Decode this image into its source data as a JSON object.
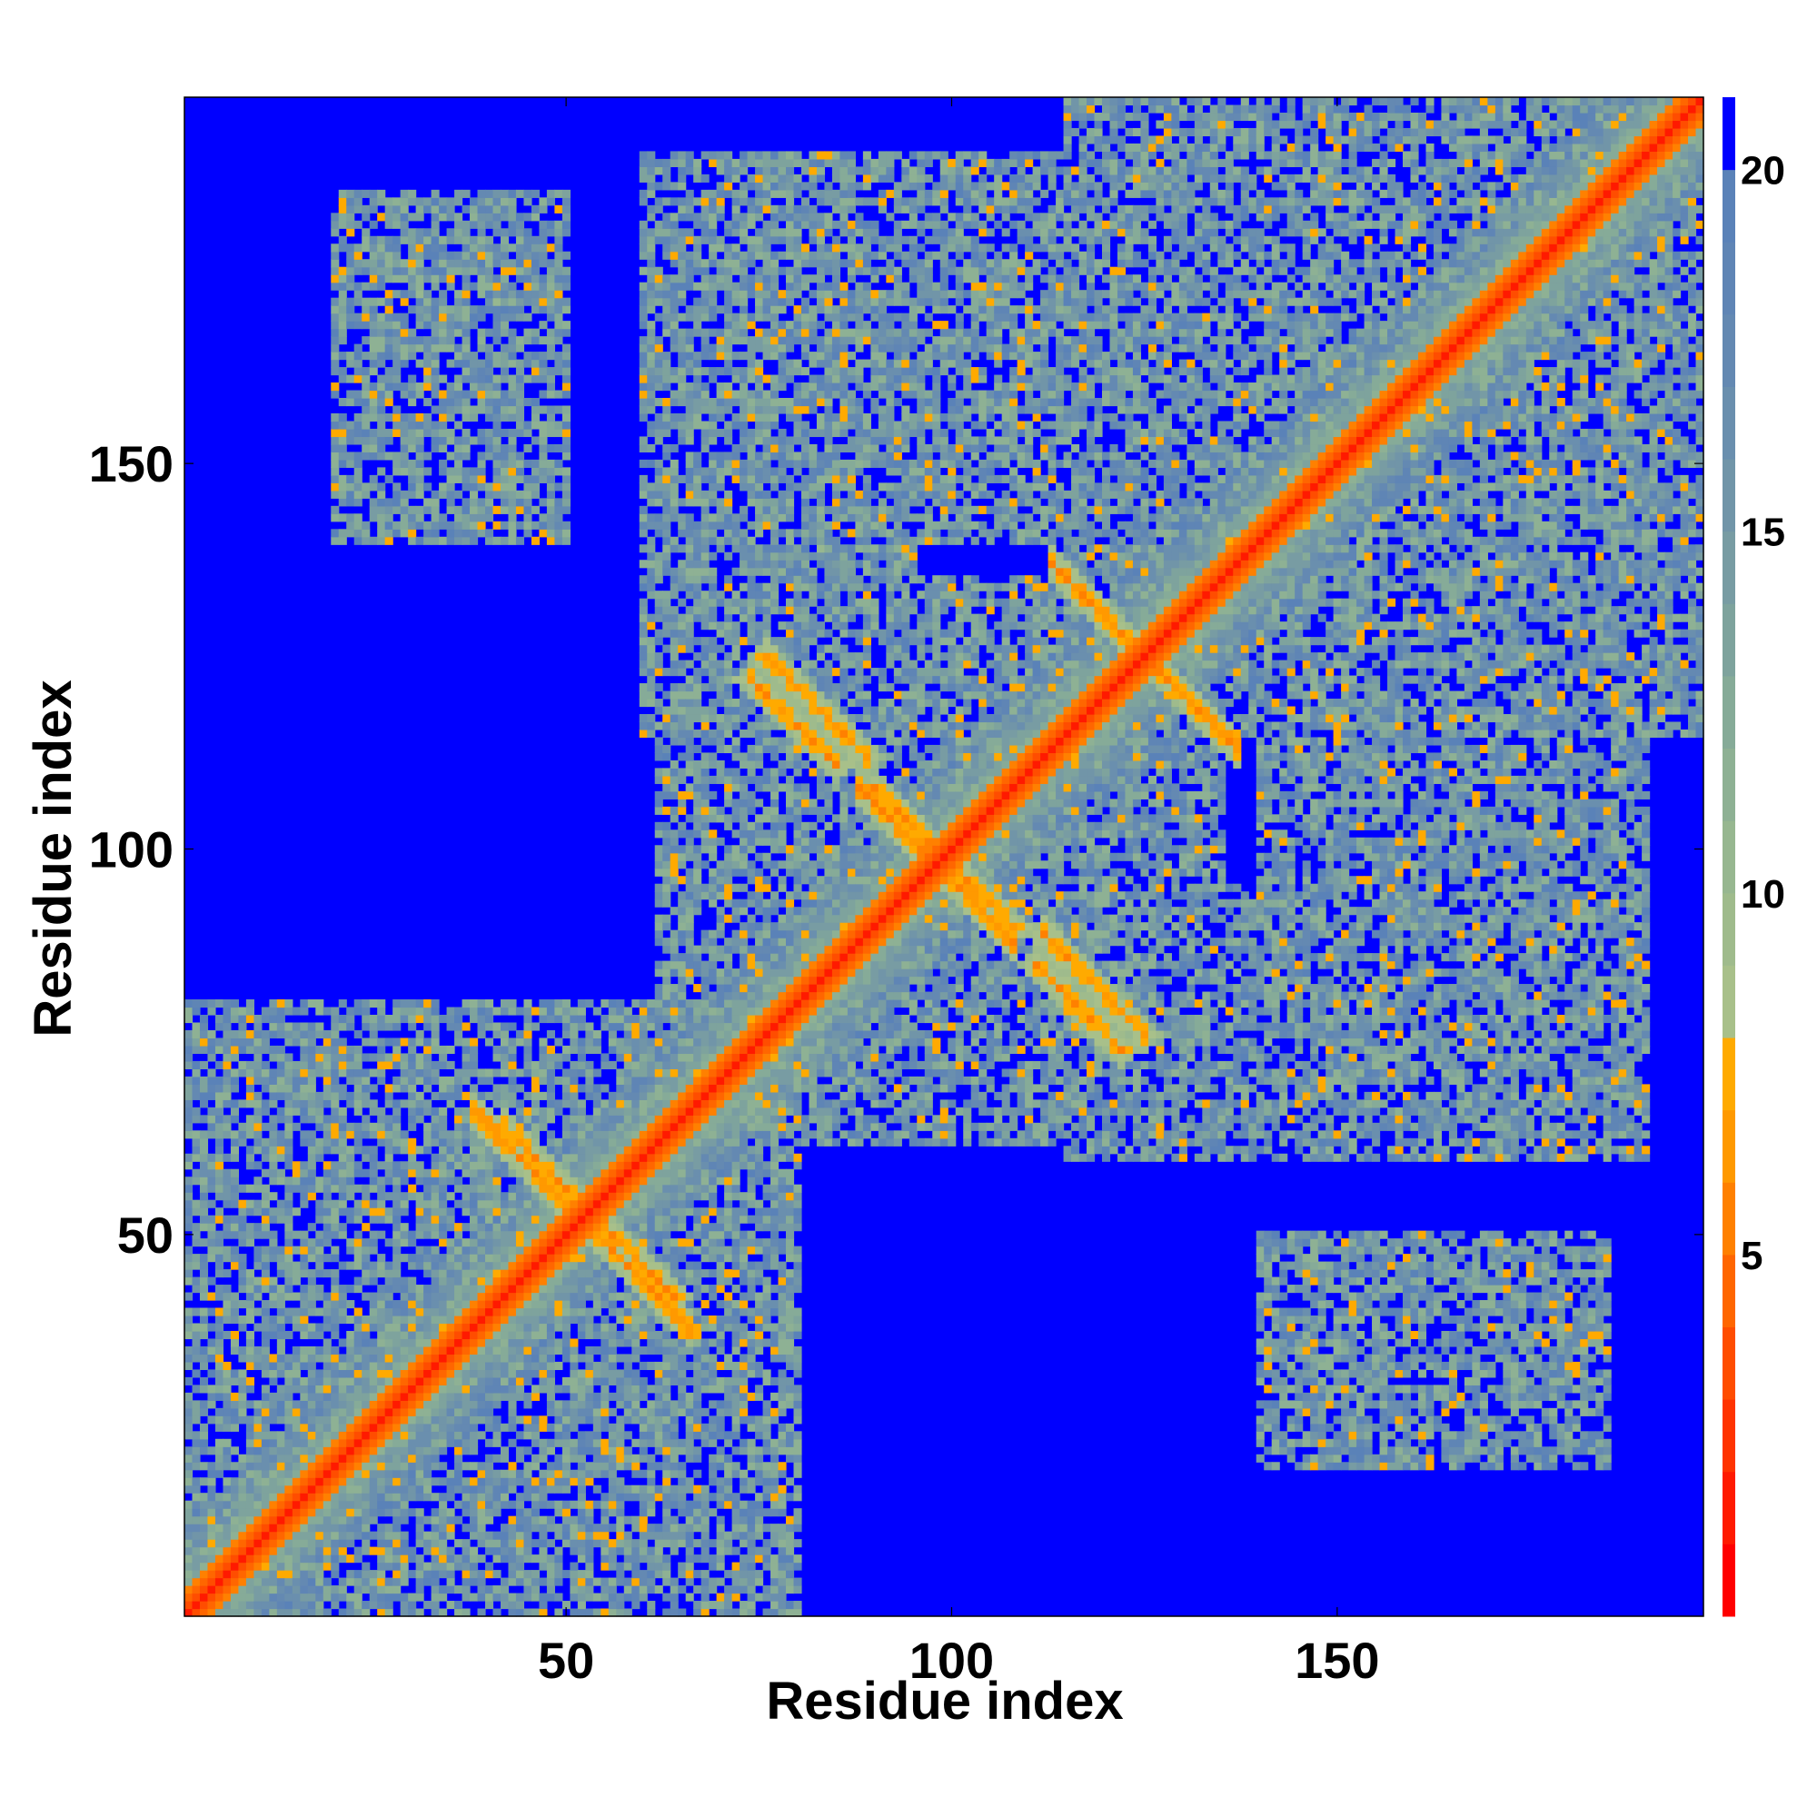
{
  "chart_data": {
    "type": "heatmap",
    "title": "",
    "xlabel": "Residue index",
    "ylabel": "Residue index",
    "xlim": [
      1,
      197
    ],
    "ylim": [
      1,
      197
    ],
    "xticks": [
      50,
      100,
      150
    ],
    "yticks": [
      50,
      100,
      150
    ],
    "colorbar": {
      "ticks": [
        5,
        10,
        15,
        20
      ],
      "range": [
        0,
        21
      ],
      "levels": [
        {
          "max": 1,
          "color": "#ff0000"
        },
        {
          "max": 2,
          "color": "#ff1a00"
        },
        {
          "max": 3,
          "color": "#ff3300"
        },
        {
          "max": 4,
          "color": "#ff4d00"
        },
        {
          "max": 5,
          "color": "#ff6600"
        },
        {
          "max": 6,
          "color": "#ff8000"
        },
        {
          "max": 7,
          "color": "#ff9900"
        },
        {
          "max": 8,
          "color": "#ffaa00"
        },
        {
          "max": 9,
          "color": "#a8c08a"
        },
        {
          "max": 10,
          "color": "#9fbb8c"
        },
        {
          "max": 11,
          "color": "#97b790"
        },
        {
          "max": 12,
          "color": "#8eb194"
        },
        {
          "max": 13,
          "color": "#86ab98"
        },
        {
          "max": 14,
          "color": "#7ea39d"
        },
        {
          "max": 15,
          "color": "#789ca3"
        },
        {
          "max": 16,
          "color": "#7195a8"
        },
        {
          "max": 17,
          "color": "#6a8fae"
        },
        {
          "max": 18,
          "color": "#6489b2"
        },
        {
          "max": 19,
          "color": "#5f85b5"
        },
        {
          "max": 20,
          "color": "#5a82b8"
        },
        {
          "max": 21,
          "color": "#0000ff"
        }
      ]
    },
    "cutoff": 20,
    "matrix_description_features": {
      "diagonal_width": 3,
      "helix_crossings": [
        {
          "i": 52,
          "j": 52,
          "arm": 14
        },
        {
          "i": 98,
          "j": 98,
          "arm": 10
        },
        {
          "i": 125,
          "j": 125,
          "arm": 12
        }
      ],
      "antiparallel_contacts": [
        {
          "i_start": 42,
          "j_start": 64,
          "length": 12
        },
        {
          "i_start": 76,
          "j_start": 125,
          "length": 14
        },
        {
          "i_start": 90,
          "j_start": 108,
          "length": 12
        },
        {
          "i_start": 74,
          "j_start": 122,
          "length": 12
        }
      ],
      "contact_domains": [
        {
          "i": [
            1,
            70
          ],
          "j": [
            1,
            80
          ]
        },
        {
          "i": [
            62,
            135
          ],
          "j": [
            62,
            135
          ]
        },
        {
          "i": [
            115,
            197
          ],
          "j": [
            115,
            197
          ]
        },
        {
          "i": [
            60,
            95
          ],
          "j": [
            115,
            190
          ]
        },
        {
          "i": [
            100,
            140
          ],
          "j": [
            140,
            190
          ]
        },
        {
          "i": [
            140,
            190
          ],
          "j": [
            60,
            110
          ]
        },
        {
          "i": [
            20,
            50
          ],
          "j": [
            140,
            185
          ]
        }
      ]
    }
  }
}
